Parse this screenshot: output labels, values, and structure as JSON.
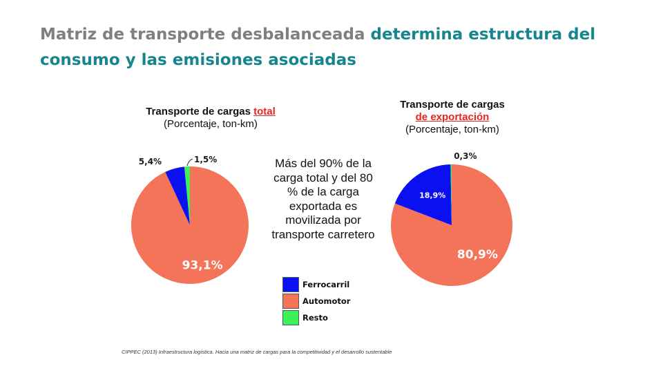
{
  "slide": {
    "title_part1": "Matriz de transporte desbalanceada",
    "title_part2": "determina  estructura del consumo y las emisiones asociadas",
    "annotation": "Más del 90% de la carga total y del 80 % de la carga exportada es movilizada por transporte carretero",
    "source": "CIPPEC (2013) Infraestructura logística. Hacia una matriz de cargas para la competitividad y el desarrollo sustentable"
  },
  "legend": [
    {
      "label": "Ferrocarril",
      "color": "#0a10f0"
    },
    {
      "label": "Automotor",
      "color": "#f47459"
    },
    {
      "label": "Resto",
      "color": "#3df05a"
    }
  ],
  "chart_data": [
    {
      "type": "pie",
      "title_prefix": "Transporte de cargas ",
      "title_highlight": "total",
      "subtitle": "(Porcentaje, ton-km)",
      "slices": [
        {
          "category": "Automotor",
          "value": 93.1,
          "label": "93,1%",
          "color": "#f47459"
        },
        {
          "category": "Ferrocarril",
          "value": 5.4,
          "label": "5,4%",
          "color": "#0a10f0"
        },
        {
          "category": "Resto",
          "value": 1.5,
          "label": "1,5%",
          "color": "#3df05a"
        }
      ]
    },
    {
      "type": "pie",
      "title_prefix": "Transporte de cargas",
      "title_highlight": "de exportación",
      "subtitle": "(Porcentaje, ton-km)",
      "slices": [
        {
          "category": "Automotor",
          "value": 80.9,
          "label": "80,9%",
          "color": "#f47459"
        },
        {
          "category": "Ferrocarril",
          "value": 18.9,
          "label": "18,9%",
          "color": "#0a10f0"
        },
        {
          "category": "Resto",
          "value": 0.3,
          "label": "0,3%",
          "color": "#3df05a"
        }
      ]
    }
  ]
}
